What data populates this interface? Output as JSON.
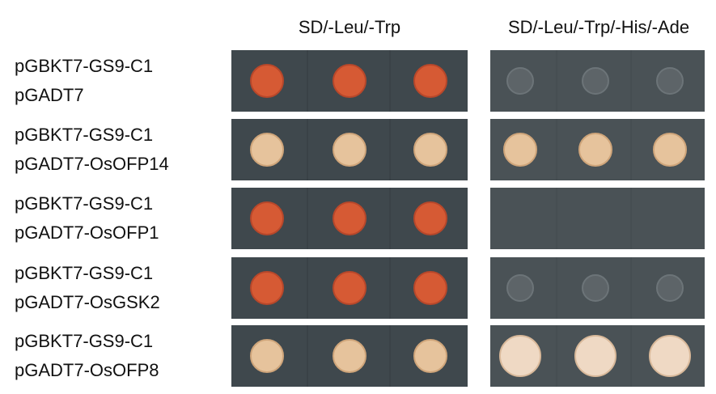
{
  "headers": [
    "SD/-Leu/-Trp",
    "SD/-Leu/-Trp/-His/-Ade"
  ],
  "rows": [
    {
      "lines": [
        "pGBKT7-GS9-C1",
        "pGADT7"
      ]
    },
    {
      "lines": [
        "pGBKT7-GS9-C1",
        "pGADT7-OsOFP14"
      ]
    },
    {
      "lines": [
        "pGBKT7-GS9-C1",
        "pGADT7-OsOFP1"
      ]
    },
    {
      "lines": [
        "pGBKT7-GS9-C1",
        "pGADT7-OsGSK2"
      ]
    },
    {
      "lines": [
        "pGBKT7-GS9-C1",
        "pGADT7-OsOFP8"
      ]
    }
  ]
}
